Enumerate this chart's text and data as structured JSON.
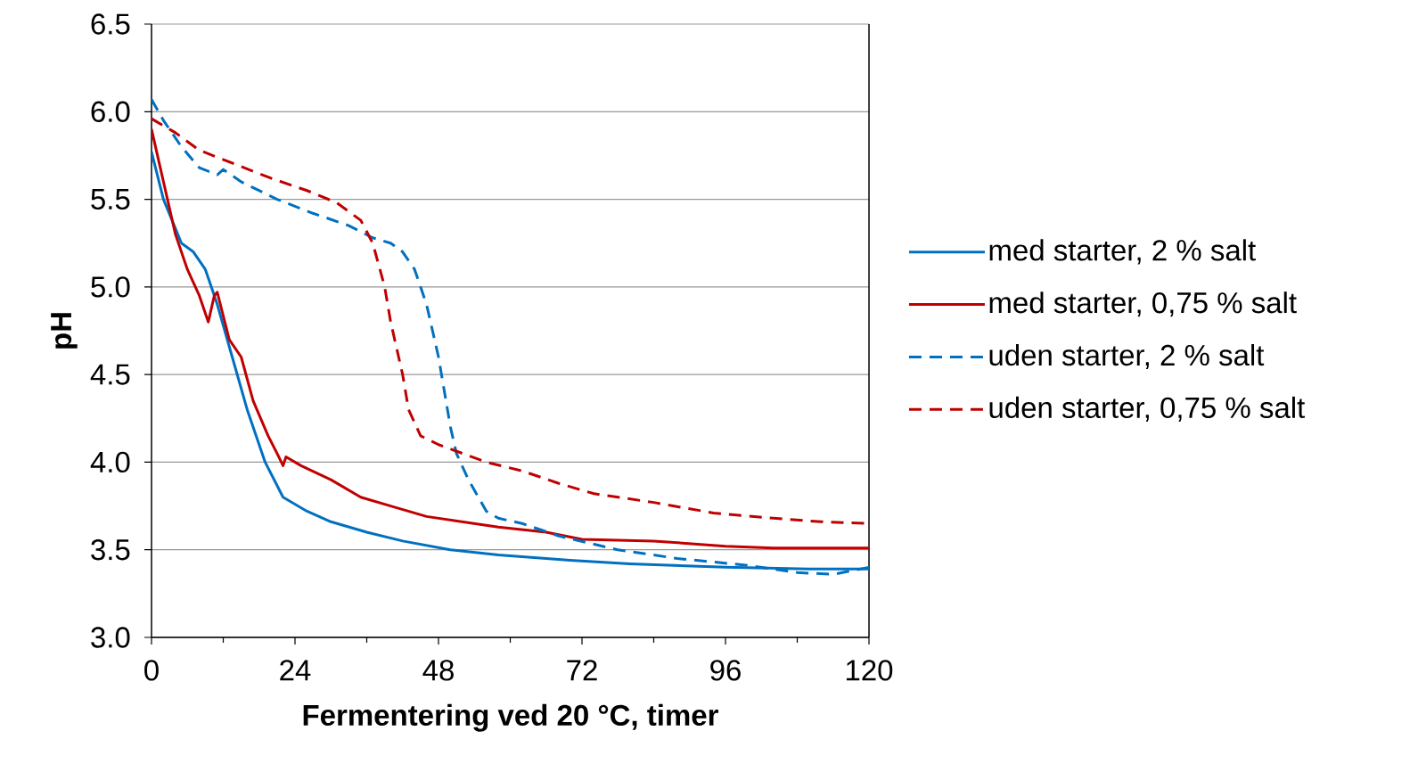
{
  "chart_data": {
    "type": "line",
    "xlabel": "Fermentering ved 20 °C, timer",
    "ylabel": "pH",
    "xlim": [
      0,
      120
    ],
    "ylim": [
      3.0,
      6.5
    ],
    "xticks": [
      0,
      24,
      48,
      72,
      96,
      120
    ],
    "yticks": [
      {
        "value": 3.0,
        "label": "3.0"
      },
      {
        "value": 3.5,
        "label": "3.5"
      },
      {
        "value": 4.0,
        "label": "4.0"
      },
      {
        "value": 4.5,
        "label": "4.5"
      },
      {
        "value": 5.0,
        "label": "5.0"
      },
      {
        "value": 5.5,
        "label": "5.5"
      },
      {
        "value": 6.0,
        "label": "6.0"
      },
      {
        "value": 6.5,
        "label": "6.5"
      }
    ],
    "grid": "y",
    "legend": "right",
    "series": [
      {
        "name": "med starter, 2 % salt",
        "color": "#0070c0",
        "line_style": "solid",
        "x": [
          0,
          2,
          5,
          7,
          9,
          10,
          11,
          13.5,
          16,
          19,
          22,
          26,
          30,
          36,
          42,
          50,
          58,
          70,
          80,
          96,
          110,
          120
        ],
        "values": [
          5.77,
          5.5,
          5.25,
          5.2,
          5.1,
          5.0,
          4.9,
          4.6,
          4.3,
          4.0,
          3.8,
          3.72,
          3.66,
          3.6,
          3.55,
          3.5,
          3.47,
          3.44,
          3.42,
          3.4,
          3.39,
          3.39
        ]
      },
      {
        "name": "med starter, 0,75 % salt",
        "color": "#c00000",
        "line_style": "solid",
        "x": [
          0,
          2,
          4,
          6,
          8,
          9.5,
          10.5,
          11,
          13,
          15,
          17,
          19.5,
          21,
          22,
          22.5,
          25,
          30,
          35,
          40,
          46,
          52,
          58,
          66,
          72,
          84,
          96,
          104,
          120
        ],
        "values": [
          5.9,
          5.6,
          5.3,
          5.1,
          4.95,
          4.8,
          4.95,
          4.97,
          4.7,
          4.6,
          4.35,
          4.15,
          4.05,
          3.98,
          4.03,
          3.98,
          3.9,
          3.8,
          3.75,
          3.69,
          3.66,
          3.63,
          3.6,
          3.56,
          3.55,
          3.52,
          3.51,
          3.51
        ]
      },
      {
        "name": "uden starter, 2 % salt",
        "color": "#0070c0",
        "line_style": "dashed",
        "x": [
          0,
          2,
          5,
          8,
          11,
          12,
          15,
          21,
          27,
          33,
          37,
          40,
          42,
          44,
          46,
          48,
          49,
          50,
          51,
          53,
          56,
          58,
          62,
          68,
          78,
          88,
          100,
          108,
          114,
          120
        ],
        "values": [
          6.07,
          5.95,
          5.8,
          5.68,
          5.64,
          5.67,
          5.6,
          5.5,
          5.42,
          5.35,
          5.28,
          5.25,
          5.2,
          5.1,
          4.9,
          4.6,
          4.4,
          4.2,
          4.05,
          3.9,
          3.72,
          3.68,
          3.65,
          3.58,
          3.5,
          3.45,
          3.41,
          3.37,
          3.36,
          3.4
        ]
      },
      {
        "name": "uden starter, 0,75 % salt",
        "color": "#c00000",
        "line_style": "dashed",
        "x": [
          0,
          4,
          8,
          14,
          20,
          26,
          31,
          35,
          37,
          39,
          40,
          42,
          43,
          45,
          48,
          52,
          56,
          62,
          68,
          74,
          84,
          94,
          104,
          112,
          120
        ],
        "values": [
          5.96,
          5.88,
          5.78,
          5.7,
          5.62,
          5.55,
          5.48,
          5.38,
          5.25,
          5.0,
          4.8,
          4.5,
          4.3,
          4.15,
          4.1,
          4.05,
          4.0,
          3.95,
          3.88,
          3.82,
          3.77,
          3.71,
          3.68,
          3.66,
          3.65
        ]
      }
    ]
  }
}
